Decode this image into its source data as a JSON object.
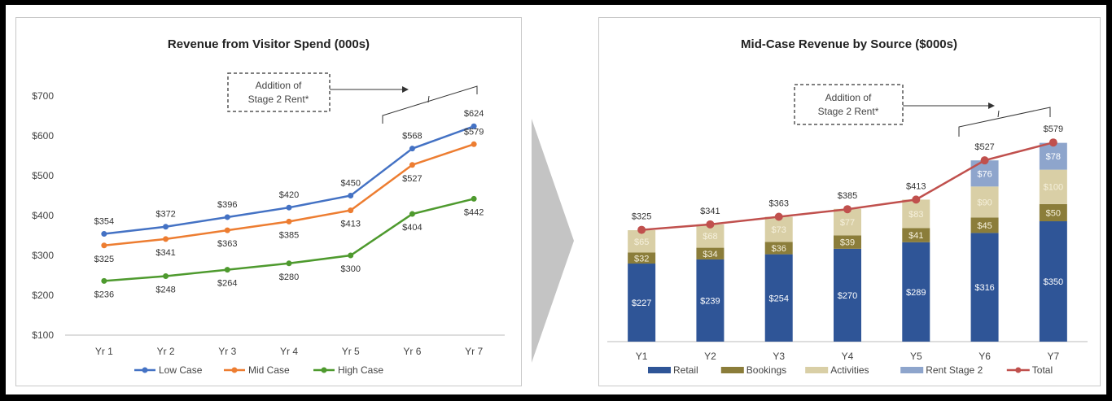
{
  "chart_data": [
    {
      "type": "line",
      "title": "Revenue from Visitor Spend (000s)",
      "categories": [
        "Yr 1",
        "Yr 2",
        "Yr 3",
        "Yr 4",
        "Yr 5",
        "Yr 6",
        "Yr 7"
      ],
      "series": [
        {
          "name": "Low Case",
          "color": "#4472C4",
          "values": [
            354,
            372,
            396,
            420,
            450,
            568,
            624
          ],
          "labels": [
            "$354",
            "$372",
            "$396",
            "$420",
            "$450",
            "$568",
            "$624"
          ]
        },
        {
          "name": "Mid Case",
          "color": "#ED7D31",
          "values": [
            325,
            341,
            363,
            385,
            413,
            527,
            579
          ],
          "labels": [
            "$325",
            "$341",
            "$363",
            "$385",
            "$413",
            "$527",
            "$579"
          ]
        },
        {
          "name": "High Case",
          "color": "#4E9A2E",
          "values": [
            236,
            248,
            264,
            280,
            300,
            404,
            442
          ],
          "labels": [
            "$236",
            "$248",
            "$264",
            "$280",
            "$300",
            "$404",
            "$442"
          ]
        }
      ],
      "ylim": [
        100,
        700
      ],
      "yticks": [
        "$100",
        "$200",
        "$300",
        "$400",
        "$500",
        "$600",
        "$700"
      ],
      "annotation": [
        "Addition of",
        "Stage 2 Rent*"
      ],
      "legend_position": "bottom",
      "grid": false
    },
    {
      "type": "bar",
      "stacked": true,
      "title": "Mid-Case Revenue by Source ($000s)",
      "categories": [
        "Y1",
        "Y2",
        "Y3",
        "Y4",
        "Y5",
        "Y6",
        "Y7"
      ],
      "series": [
        {
          "name": "Retail",
          "color": "#2F5597",
          "values": [
            227,
            239,
            254,
            270,
            289,
            316,
            350
          ],
          "labels": [
            "$227",
            "$239",
            "$254",
            "$270",
            "$289",
            "$316",
            "$350"
          ]
        },
        {
          "name": "Bookings",
          "color": "#8B7D3A",
          "values": [
            32,
            34,
            36,
            39,
            41,
            45,
            50
          ],
          "labels": [
            "$32",
            "$34",
            "$36",
            "$39",
            "$41",
            "$45",
            "$50"
          ]
        },
        {
          "name": "Activities",
          "color": "#D9CFA6",
          "values": [
            65,
            68,
            73,
            77,
            83,
            90,
            100
          ],
          "labels": [
            "$65",
            "$68",
            "$73",
            "$77",
            "$83",
            "$90",
            "$100"
          ]
        },
        {
          "name": "Rent Stage 2",
          "color": "#8EA5CC",
          "values": [
            0,
            0,
            0,
            0,
            0,
            76,
            78
          ],
          "labels": [
            "",
            "",
            "",
            "",
            "",
            "$76",
            "$78"
          ]
        }
      ],
      "line_series": {
        "name": "Total",
        "color": "#C0504D",
        "values": [
          325,
          341,
          363,
          385,
          413,
          527,
          579
        ],
        "labels": [
          "$325",
          "$341",
          "$363",
          "$385",
          "$413",
          "$527",
          "$579"
        ]
      },
      "ylim": [
        0,
        700
      ],
      "annotation": [
        "Addition of",
        "Stage 2 Rent*"
      ],
      "legend_position": "bottom",
      "grid": false
    }
  ]
}
